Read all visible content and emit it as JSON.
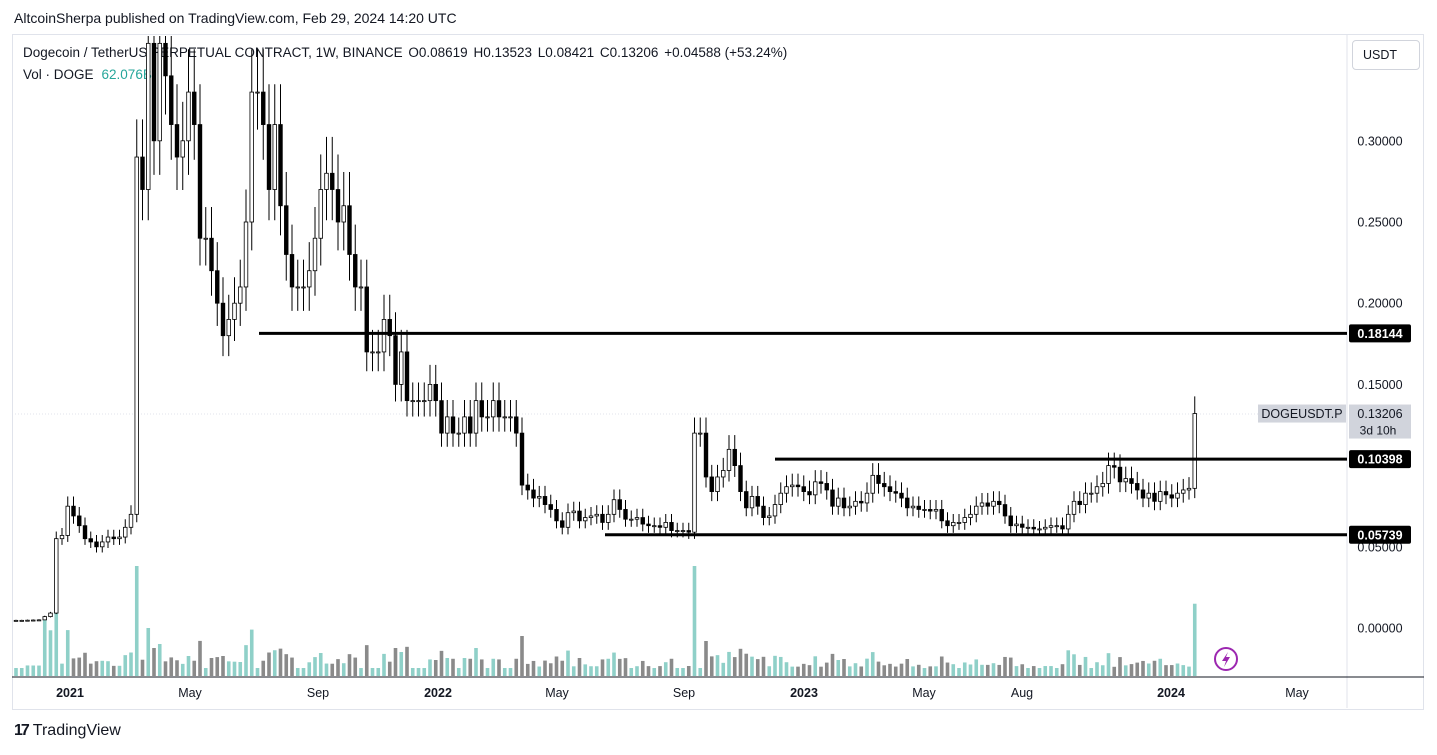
{
  "header": {
    "publisher_line": "AltcoinSherpa published on TradingView.com, Feb 29, 2024 14:20 UTC"
  },
  "legend": {
    "symbol": "Dogecoin / TetherUS PERPETUAL CONTRACT, 1W, BINANCE",
    "open": "O0.08619",
    "high": "H0.13523",
    "low": "L0.08421",
    "close": "C0.13206",
    "change": "+0.04588 (+53.24%)",
    "vol_label": "Vol · DOGE",
    "vol_value": "62.076B"
  },
  "currency_button": "USDT",
  "footer": {
    "logo_mark": "17",
    "brand": "TradingView"
  },
  "chart_data": {
    "type": "candlestick",
    "ylim": [
      0.0,
      0.35
    ],
    "yticks": [
      "0.30000",
      "0.25000",
      "0.20000",
      "0.15000",
      "0.05000",
      "0.00000"
    ],
    "xticks": [
      "2021",
      "May",
      "Sep",
      "2022",
      "May",
      "Sep",
      "2023",
      "May",
      "Aug",
      "2024",
      "May"
    ],
    "price_tag": {
      "symbol": "DOGEUSDT.P",
      "price": "0.13206",
      "countdown": "3d 10h"
    },
    "horizontal_levels": [
      {
        "label": "0.18144",
        "value": 0.18144,
        "from": "2021-07",
        "to": "2024-06"
      },
      {
        "label": "0.10398",
        "value": 0.10398,
        "from": "2022-11",
        "to": "2024-06"
      },
      {
        "label": "0.05739",
        "value": 0.05739,
        "from": "2022-05",
        "to": "2024-06"
      }
    ],
    "candles_close": [
      0.0047,
      0.0047,
      0.0048,
      0.0049,
      0.005,
      0.007,
      0.0092,
      0.055,
      0.057,
      0.075,
      0.069,
      0.063,
      0.055,
      0.053,
      0.05,
      0.053,
      0.056,
      0.055,
      0.056,
      0.062,
      0.07,
      0.29,
      0.27,
      0.36,
      0.3,
      0.36,
      0.34,
      0.31,
      0.29,
      0.3,
      0.33,
      0.31,
      0.24,
      0.24,
      0.22,
      0.2,
      0.18,
      0.19,
      0.2,
      0.21,
      0.25,
      0.33,
      0.33,
      0.31,
      0.27,
      0.31,
      0.26,
      0.23,
      0.21,
      0.21,
      0.21,
      0.22,
      0.24,
      0.27,
      0.28,
      0.27,
      0.25,
      0.26,
      0.23,
      0.21,
      0.21,
      0.17,
      0.17,
      0.17,
      0.19,
      0.18,
      0.15,
      0.17,
      0.14,
      0.14,
      0.14,
      0.14,
      0.15,
      0.14,
      0.12,
      0.13,
      0.12,
      0.12,
      0.13,
      0.12,
      0.14,
      0.13,
      0.13,
      0.14,
      0.13,
      0.13,
      0.13,
      0.12,
      0.088,
      0.085,
      0.08,
      0.081,
      0.076,
      0.073,
      0.066,
      0.062,
      0.071,
      0.072,
      0.066,
      0.068,
      0.069,
      0.07,
      0.065,
      0.07,
      0.079,
      0.073,
      0.067,
      0.067,
      0.068,
      0.064,
      0.063,
      0.063,
      0.062,
      0.065,
      0.06,
      0.06,
      0.06,
      0.059,
      0.12,
      0.12,
      0.093,
      0.084,
      0.093,
      0.097,
      0.11,
      0.1,
      0.084,
      0.074,
      0.081,
      0.075,
      0.068,
      0.069,
      0.076,
      0.083,
      0.087,
      0.088,
      0.087,
      0.084,
      0.082,
      0.09,
      0.089,
      0.085,
      0.075,
      0.08,
      0.074,
      0.075,
      0.078,
      0.077,
      0.083,
      0.094,
      0.089,
      0.087,
      0.084,
      0.083,
      0.08,
      0.074,
      0.075,
      0.073,
      0.073,
      0.072,
      0.073,
      0.066,
      0.063,
      0.065,
      0.065,
      0.068,
      0.07,
      0.075,
      0.077,
      0.075,
      0.078,
      0.076,
      0.069,
      0.063,
      0.064,
      0.062,
      0.062,
      0.061,
      0.061,
      0.062,
      0.063,
      0.063,
      0.061,
      0.07,
      0.078,
      0.076,
      0.083,
      0.083,
      0.087,
      0.089,
      0.1,
      0.099,
      0.09,
      0.092,
      0.089,
      0.085,
      0.08,
      0.083,
      0.078,
      0.084,
      0.082,
      0.08,
      0.083,
      0.085,
      0.086,
      0.13206
    ],
    "volume_series": "Vol · DOGE"
  }
}
